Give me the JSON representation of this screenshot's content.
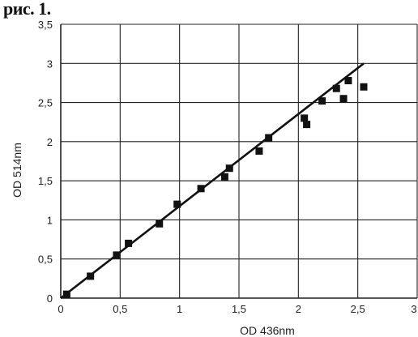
{
  "figure_label": "рис. 1.",
  "chart_data": {
    "type": "scatter",
    "title": "",
    "xlabel": "OD 436nm",
    "ylabel": "OD 514nm",
    "xlim": [
      0,
      3
    ],
    "ylim": [
      0,
      3.5
    ],
    "x_ticks": [
      "0",
      "0,5",
      "1",
      "1,5",
      "2",
      "2,5",
      "3"
    ],
    "y_ticks": [
      "0",
      "0,5",
      "1",
      "1,5",
      "2",
      "2,5",
      "3",
      "3,5"
    ],
    "grid": true,
    "series": [
      {
        "marker": "square",
        "points": [
          {
            "x": 0.05,
            "y": 0.05
          },
          {
            "x": 0.25,
            "y": 0.28
          },
          {
            "x": 0.47,
            "y": 0.55
          },
          {
            "x": 0.57,
            "y": 0.7
          },
          {
            "x": 0.83,
            "y": 0.95
          },
          {
            "x": 0.98,
            "y": 1.2
          },
          {
            "x": 1.18,
            "y": 1.4
          },
          {
            "x": 1.38,
            "y": 1.55
          },
          {
            "x": 1.42,
            "y": 1.66
          },
          {
            "x": 1.67,
            "y": 1.88
          },
          {
            "x": 1.75,
            "y": 2.05
          },
          {
            "x": 2.05,
            "y": 2.3
          },
          {
            "x": 2.07,
            "y": 2.22
          },
          {
            "x": 2.2,
            "y": 2.52
          },
          {
            "x": 2.32,
            "y": 2.68
          },
          {
            "x": 2.38,
            "y": 2.55
          },
          {
            "x": 2.42,
            "y": 2.78
          },
          {
            "x": 2.55,
            "y": 2.7
          }
        ]
      }
    ],
    "fit_line": {
      "x": [
        0,
        2.55
      ],
      "y": [
        0,
        3.0
      ]
    },
    "colors": {
      "marker": "#111111",
      "line": "#111111",
      "grid": "#222222"
    }
  }
}
